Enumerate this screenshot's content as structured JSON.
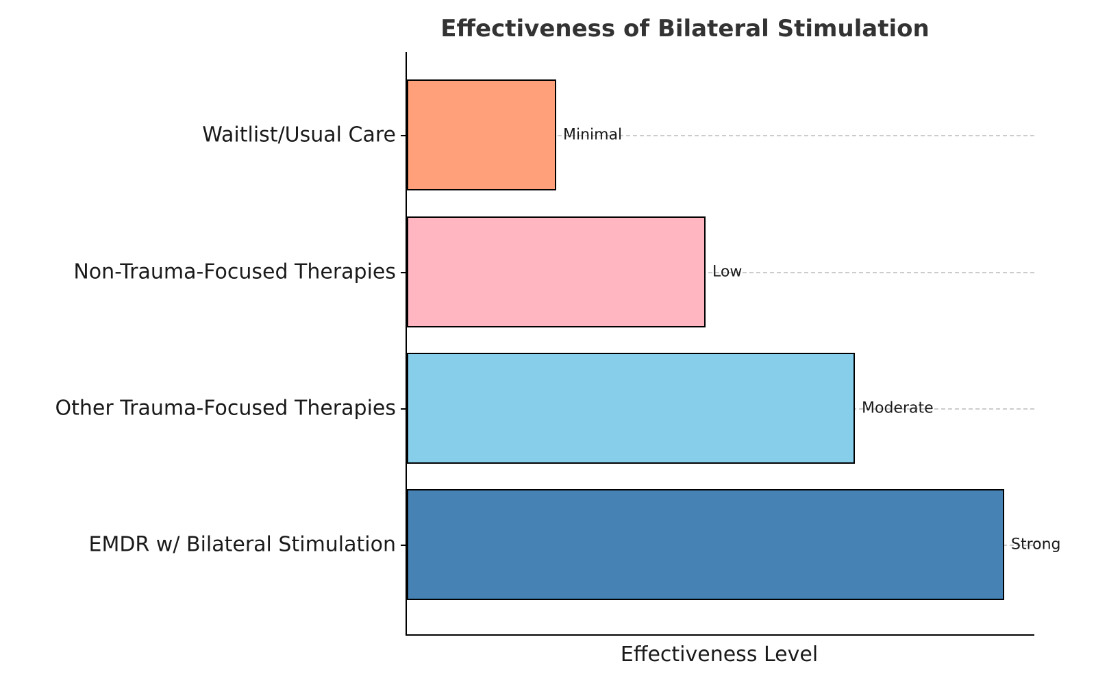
{
  "chart_data": {
    "type": "bar",
    "orientation": "horizontal",
    "title": "Effectiveness of Bilateral Stimulation",
    "xlabel": "Effectiveness Level",
    "ylabel": "",
    "xlim": [
      0,
      4.2
    ],
    "grid": "horizontal dashed gridlines at each category, full plot width",
    "legend": "none",
    "categories_top_to_bottom": [
      "Waitlist/Usual Care",
      "Non-Trauma-Focused Therapies",
      "Other Trauma-Focused Therapies",
      "EMDR w/ Bilateral Stimulation"
    ],
    "values_top_to_bottom": [
      1,
      2,
      3,
      4
    ],
    "value_labels_top_to_bottom": [
      "Minimal",
      "Low",
      "Moderate",
      "Strong"
    ],
    "bar_colors_top_to_bottom": [
      "#FFA07A",
      "#FFB6C1",
      "#87CEEB",
      "#4682B4"
    ],
    "bar_edge_color": "#000000",
    "gridline_color": "#cccccc",
    "title_color": "#333333",
    "label_color": "#1a1a1a"
  }
}
